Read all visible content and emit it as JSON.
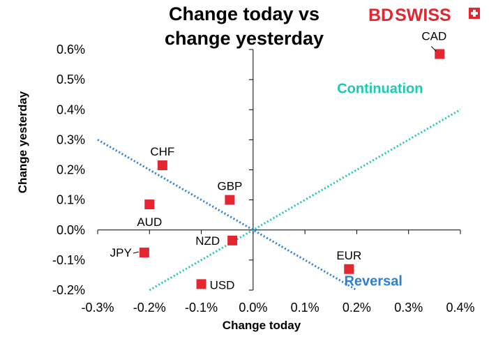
{
  "brand": {
    "logo_bd": "BD",
    "logo_swiss": "SWISS",
    "logo_color": "#e3262f"
  },
  "chart_data": {
    "type": "scatter",
    "title": [
      "Change today vs",
      "change yesterday"
    ],
    "xlabel": "Change today",
    "ylabel": "Change yesterday",
    "xlim": [
      -0.3,
      0.4
    ],
    "ylim": [
      -0.2,
      0.6
    ],
    "x_ticks": [
      -0.3,
      -0.2,
      -0.1,
      0.0,
      0.1,
      0.2,
      0.3,
      0.4
    ],
    "y_ticks": [
      -0.2,
      -0.1,
      0.0,
      0.1,
      0.2,
      0.3,
      0.4,
      0.5,
      0.6
    ],
    "x_tick_labels": [
      "-0.3%",
      "-0.2%",
      "-0.1%",
      "0.0%",
      "0.1%",
      "0.2%",
      "0.3%",
      "0.4%"
    ],
    "y_tick_labels": [
      "-0.2%",
      "-0.1%",
      "0.0%",
      "0.1%",
      "0.2%",
      "0.3%",
      "0.4%",
      "0.5%",
      "0.6%"
    ],
    "marker_color": "#e3262f",
    "points": [
      {
        "label": "CAD",
        "x": 0.36,
        "y": 0.585,
        "label_pos": "above-left",
        "leader": true
      },
      {
        "label": "CHF",
        "x": -0.175,
        "y": 0.215,
        "label_pos": "above",
        "leader": false
      },
      {
        "label": "GBP",
        "x": -0.045,
        "y": 0.1,
        "label_pos": "above",
        "leader": false
      },
      {
        "label": "AUD",
        "x": -0.2,
        "y": 0.085,
        "label_pos": "below",
        "leader": false
      },
      {
        "label": "NZD",
        "x": -0.04,
        "y": -0.035,
        "label_pos": "left",
        "leader": false
      },
      {
        "label": "JPY",
        "x": -0.21,
        "y": -0.075,
        "label_pos": "left",
        "leader": true
      },
      {
        "label": "EUR",
        "x": 0.185,
        "y": -0.13,
        "label_pos": "above",
        "leader": false
      },
      {
        "label": "USD",
        "x": -0.1,
        "y": -0.18,
        "label_pos": "right",
        "leader": false
      }
    ],
    "lines": [
      {
        "name": "Continuation",
        "color": "#1cc9b8",
        "from": [
          -0.2,
          -0.2
        ],
        "to": [
          0.4,
          0.4
        ]
      },
      {
        "name": "Reversal",
        "color": "#2c7fd6",
        "from": [
          -0.3,
          0.3
        ],
        "to": [
          0.2,
          -0.2
        ]
      }
    ],
    "annotations": [
      {
        "text": "Continuation",
        "color": "#1cc9b8",
        "x": 0.245,
        "y": 0.455
      },
      {
        "text": "Reversal",
        "color": "#2c7fd6",
        "x": 0.232,
        "y": -0.185
      }
    ]
  }
}
